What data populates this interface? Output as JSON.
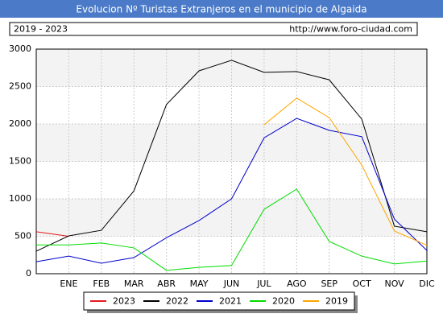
{
  "chart_data": {
    "type": "line",
    "title": "Evolucion Nº Turistas Extranjeros en el municipio de Algaida",
    "subtitle": "2019 - 2023",
    "source": "http://www.foro-ciudad.com",
    "categories": [
      null,
      "ENE",
      "FEB",
      "MAR",
      "ABR",
      "MAY",
      "JUN",
      "JUL",
      "AGO",
      "SEP",
      "OCT",
      "NOV",
      "DIC"
    ],
    "ylim": [
      0,
      3000
    ],
    "yticks": [
      0,
      500,
      1000,
      1500,
      2000,
      2500,
      3000
    ],
    "grid": true,
    "series": [
      {
        "name": "2023",
        "color": "#e41a1c",
        "values": [
          560,
          500,
          null,
          null,
          null,
          null,
          null,
          null,
          null,
          null,
          null,
          null,
          null
        ]
      },
      {
        "name": "2022",
        "color": "#000000",
        "values": [
          300,
          505,
          580,
          1105,
          2260,
          2710,
          2850,
          2690,
          2700,
          2590,
          2065,
          635,
          560
        ]
      },
      {
        "name": "2021",
        "color": "#0000cc",
        "values": [
          160,
          235,
          140,
          215,
          480,
          710,
          1000,
          1815,
          2075,
          1915,
          1830,
          730,
          310
        ]
      },
      {
        "name": "2020",
        "color": "#00dd00",
        "values": [
          385,
          385,
          410,
          345,
          45,
          85,
          110,
          860,
          1130,
          430,
          235,
          130,
          170
        ]
      },
      {
        "name": "2019",
        "color": "#ffa500",
        "values": [
          null,
          null,
          null,
          null,
          null,
          null,
          null,
          1990,
          2345,
          2085,
          1450,
          570,
          380
        ]
      }
    ]
  }
}
